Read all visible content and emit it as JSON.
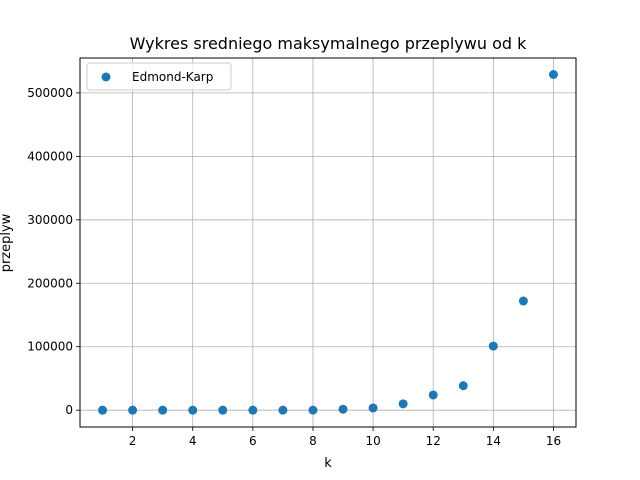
{
  "chart_data": {
    "type": "scatter",
    "title": "Wykres sredniego maksymalnego przeplywu od k",
    "xlabel": "k",
    "ylabel": "przeplyw",
    "xlim": [
      0.25,
      16.75
    ],
    "ylim": [
      -26500,
      555000
    ],
    "xticks": [
      2,
      4,
      6,
      8,
      10,
      12,
      14,
      16
    ],
    "yticks": [
      0,
      100000,
      200000,
      300000,
      400000,
      500000
    ],
    "grid": true,
    "legend_position": "top-left",
    "series": [
      {
        "name": "Edmond-Karp",
        "color": "#1f77b4",
        "x": [
          1,
          2,
          3,
          4,
          5,
          6,
          7,
          8,
          9,
          10,
          11,
          12,
          13,
          14,
          15,
          16
        ],
        "y": [
          0,
          0,
          0,
          0,
          0,
          0,
          0,
          100,
          1500,
          3500,
          10000,
          24000,
          38500,
          101000,
          172000,
          529000
        ]
      }
    ]
  }
}
